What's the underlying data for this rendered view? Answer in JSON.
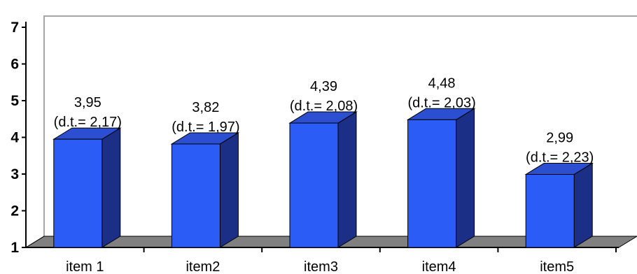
{
  "chart_data": {
    "type": "bar",
    "style": "3d-column",
    "categories": [
      "item 1",
      "item2",
      "item3",
      "item4",
      "item5"
    ],
    "values": [
      3.95,
      3.82,
      4.39,
      4.48,
      2.99
    ],
    "value_labels": [
      "3,95",
      "3,82",
      "4,39",
      "4,48",
      "2,99"
    ],
    "sd_labels": [
      "(d.t.= 2,17)",
      "(d.t.= 1,97)",
      "(d.t.= 2,08)",
      "(d.t.= 2,03)",
      "(d.t.= 2,23)"
    ],
    "title": "",
    "xlabel": "",
    "ylabel": "",
    "ylim": [
      1,
      7
    ],
    "yticks": [
      "1",
      "2",
      "3",
      "4",
      "5",
      "6",
      "7"
    ],
    "grid": false,
    "legend": "none",
    "colors": {
      "bar_front": "#2b5cf6",
      "bar_top": "#2c4ed0",
      "bar_side": "#1c2f86",
      "floor": "#808080",
      "wall_edge": "#a6a6a6",
      "axis": "#000000"
    }
  }
}
